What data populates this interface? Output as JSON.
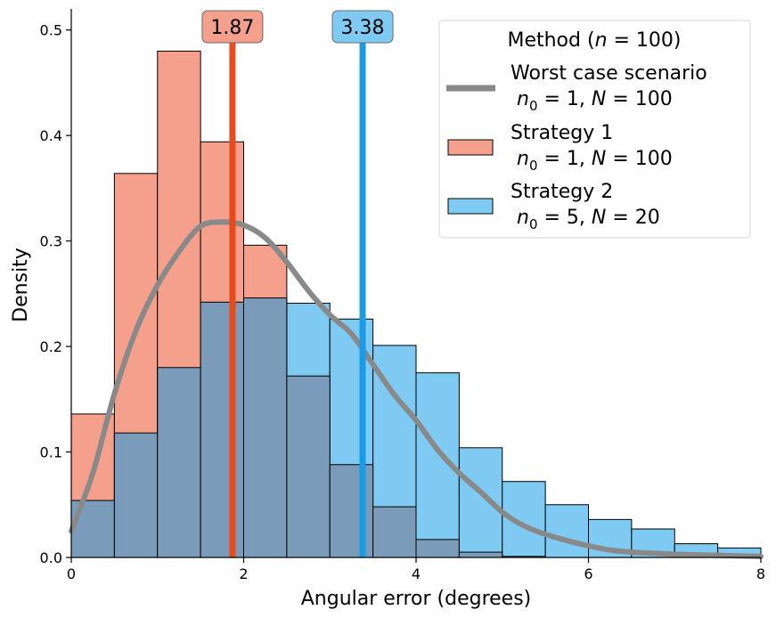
{
  "chart_data": {
    "type": "bar",
    "title": "",
    "xlabel": "Angular error (degrees)",
    "ylabel": "Density",
    "xlim": [
      0,
      8
    ],
    "ylim": [
      0,
      0.52
    ],
    "grid": false,
    "x_ticks": [
      0,
      2,
      4,
      6,
      8
    ],
    "x_tick_labels": [
      "0",
      "2",
      "4",
      "6",
      "8"
    ],
    "y_ticks": [
      0.0,
      0.1,
      0.2,
      0.3,
      0.4,
      0.5
    ],
    "y_tick_labels": [
      "0.0",
      "0.1",
      "0.2",
      "0.3",
      "0.4",
      "0.5"
    ],
    "bin_width": 0.5,
    "bin_starts": [
      0,
      0.5,
      1,
      1.5,
      2,
      2.5,
      3,
      3.5,
      4,
      4.5,
      5,
      5.5,
      6,
      6.5,
      7,
      7.5
    ],
    "series": [
      {
        "name": "Strategy 2",
        "sub": "n0 = 5, N = 20",
        "color": "#7ecaf2",
        "values": [
          0.054,
          0.118,
          0.18,
          0.242,
          0.246,
          0.241,
          0.226,
          0.201,
          0.175,
          0.104,
          0.072,
          0.05,
          0.036,
          0.027,
          0.013,
          0.009
        ]
      },
      {
        "name": "Strategy 1",
        "sub": "n0 = 1, N = 100",
        "color": "#f4a08c",
        "values": [
          0.136,
          0.364,
          0.48,
          0.394,
          0.296,
          0.172,
          0.088,
          0.048,
          0.017,
          0.005,
          0.001,
          0.0,
          0.0,
          0.0,
          0.0,
          0.0
        ]
      }
    ],
    "overlap_color": "#7a9bb9",
    "kde": {
      "name": "Worst case scenario",
      "sub": "n0 = 1, N = 100",
      "color": "#898989",
      "x": [
        0,
        0.25,
        0.5,
        0.75,
        1.0,
        1.25,
        1.5,
        1.75,
        2.0,
        2.25,
        2.5,
        2.75,
        3.0,
        3.25,
        3.5,
        3.75,
        4.0,
        4.25,
        4.5,
        4.75,
        5.0,
        5.25,
        5.5,
        5.75,
        6.0,
        6.25,
        6.5,
        6.75,
        7.0,
        7.5,
        8.0
      ],
      "y": [
        0.025,
        0.08,
        0.155,
        0.215,
        0.258,
        0.29,
        0.314,
        0.318,
        0.315,
        0.303,
        0.28,
        0.253,
        0.23,
        0.212,
        0.183,
        0.154,
        0.13,
        0.102,
        0.08,
        0.062,
        0.043,
        0.03,
        0.022,
        0.016,
        0.011,
        0.007,
        0.005,
        0.004,
        0.003,
        0.002,
        0.001
      ]
    },
    "vlines": [
      {
        "x": 1.87,
        "label": "1.87",
        "color": "#e84a1c",
        "box_color": "#f4a08c"
      },
      {
        "x": 3.38,
        "label": "3.38",
        "color": "#1a9be6",
        "box_color": "#7ecaf2"
      }
    ],
    "legend": {
      "title": "Method (n = 100)",
      "placement": "top-right"
    }
  }
}
